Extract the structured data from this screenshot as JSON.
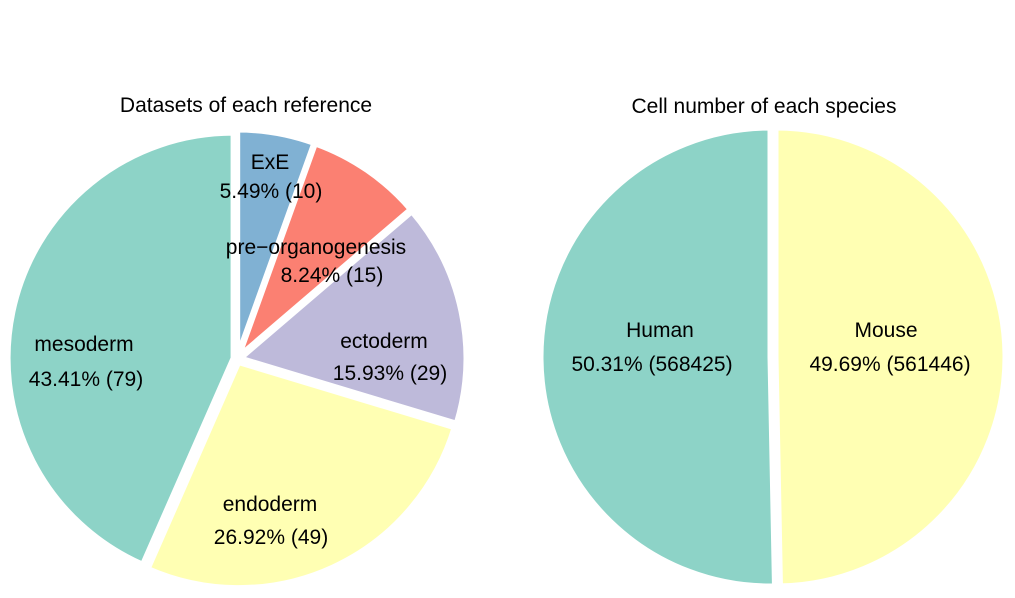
{
  "chart_data": [
    {
      "type": "pie",
      "title": "Datasets of each reference",
      "start": "top",
      "direction": "clockwise",
      "exploded": true,
      "slices": [
        {
          "label": "ExE",
          "percent": 5.49,
          "count": 10,
          "percent_text": "5.49% (10)",
          "color": "#80B1D3"
        },
        {
          "label": "pre−organogenesis",
          "percent": 8.24,
          "count": 15,
          "percent_text": "8.24% (15)",
          "color": "#FB8072"
        },
        {
          "label": "ectoderm",
          "percent": 15.93,
          "count": 29,
          "percent_text": "15.93% (29)",
          "color": "#BEBADA"
        },
        {
          "label": "endoderm",
          "percent": 26.92,
          "count": 49,
          "percent_text": "26.92% (49)",
          "color": "#FFFFB3"
        },
        {
          "label": "mesoderm",
          "percent": 43.41,
          "count": 79,
          "percent_text": "43.41% (79)",
          "color": "#8DD3C7"
        }
      ]
    },
    {
      "type": "pie",
      "title": "Cell number of each species",
      "start": "top",
      "direction": "clockwise",
      "exploded": true,
      "slices": [
        {
          "label": "Mouse",
          "percent": 49.69,
          "count": 561446,
          "percent_text": "49.69% (561446)",
          "color": "#FFFFB3"
        },
        {
          "label": "Human",
          "percent": 50.31,
          "count": 568425,
          "percent_text": "50.31% (568425)",
          "color": "#8DD3C7"
        }
      ]
    }
  ]
}
